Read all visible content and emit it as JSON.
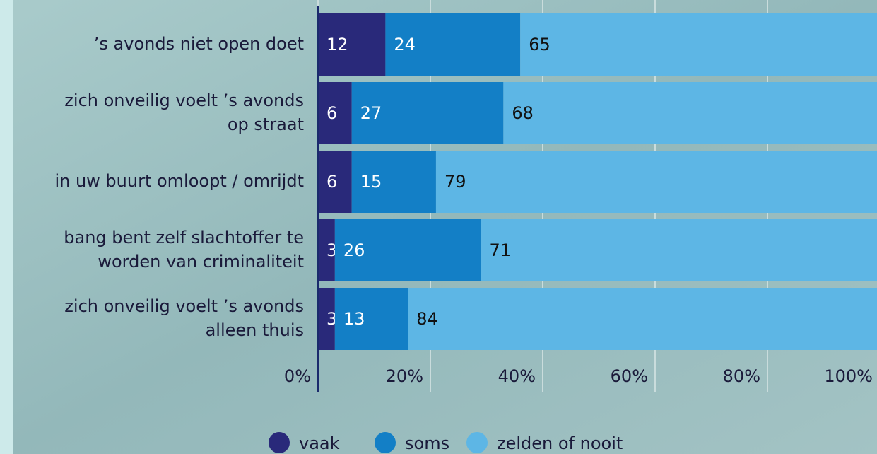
{
  "chart_data": {
    "type": "stacked-bar-horizontal",
    "categories": [
      [
        "’s avonds niet open doet"
      ],
      [
        "zich onveilig voelt ’s avonds",
        "op straat"
      ],
      [
        "in uw buurt omloopt / omrijdt"
      ],
      [
        "bang bent zelf slachtoffer te",
        "worden van criminaliteit"
      ],
      [
        "zich onveilig voelt ’s avonds",
        "alleen thuis"
      ]
    ],
    "series": [
      {
        "name": "vaak",
        "color": "#29297a",
        "values": [
          12,
          6,
          6,
          3,
          3
        ]
      },
      {
        "name": "soms",
        "color": "#137fc6",
        "values": [
          24,
          27,
          15,
          26,
          13
        ]
      },
      {
        "name": "zelden of nooit",
        "color": "#5db6e5",
        "values": [
          65,
          68,
          79,
          71,
          84
        ]
      }
    ],
    "xlim": [
      0,
      100
    ],
    "xticks": [
      {
        "value": 0,
        "label": "0%"
      },
      {
        "value": 20,
        "label": "20%"
      },
      {
        "value": 40,
        "label": "40%"
      },
      {
        "value": 60,
        "label": "60%"
      },
      {
        "value": 80,
        "label": "80%"
      },
      {
        "value": 100,
        "label": "100%"
      }
    ],
    "grid": true
  }
}
